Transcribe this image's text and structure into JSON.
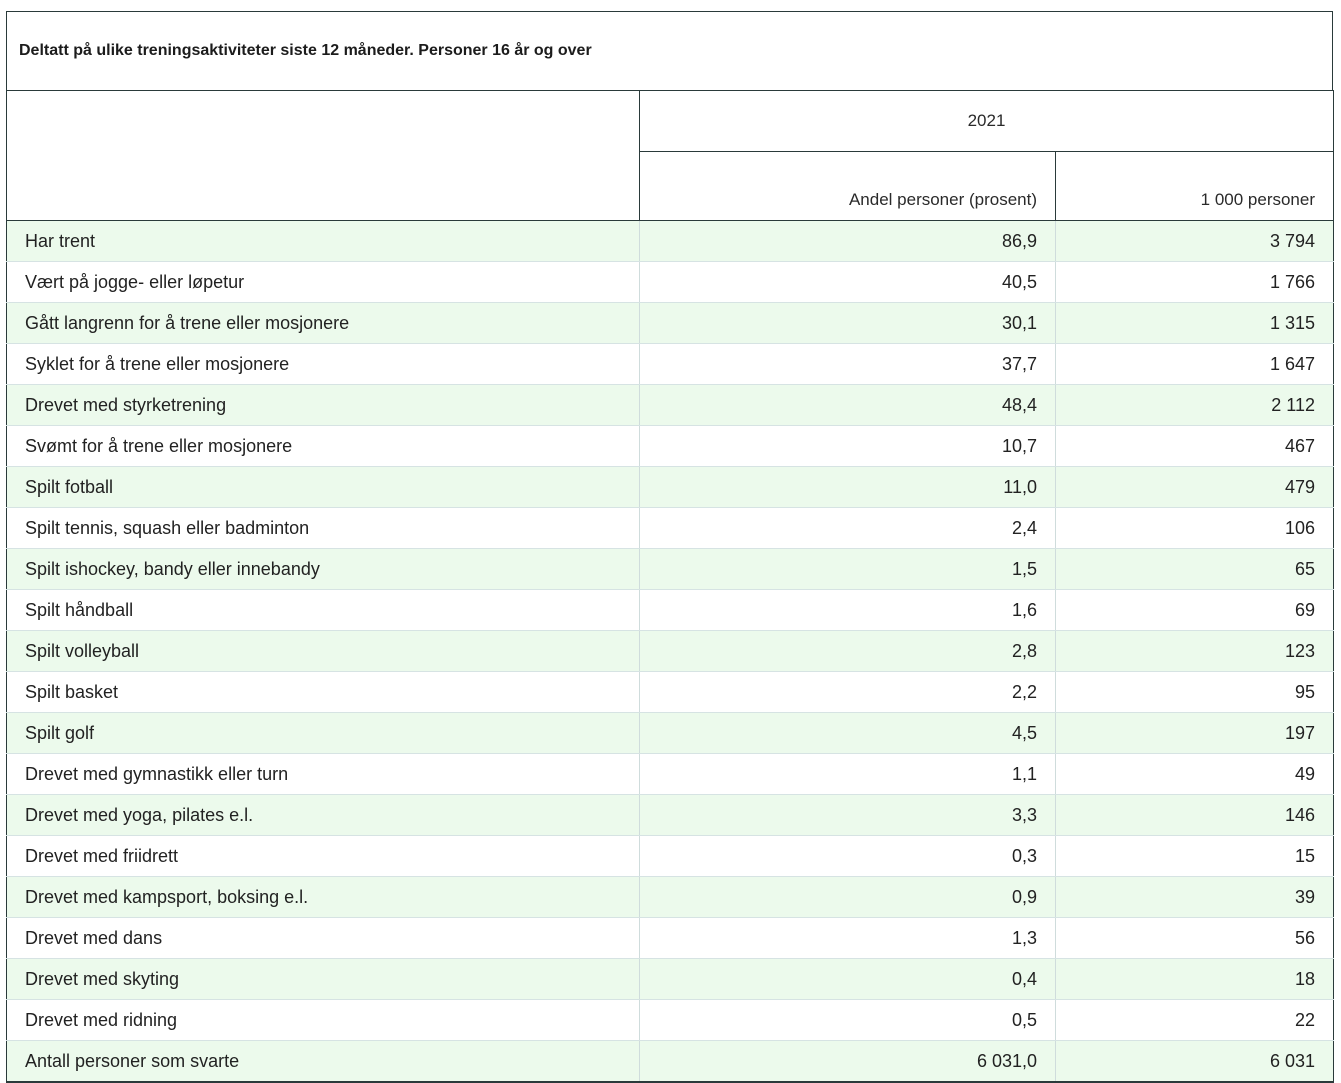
{
  "caption": "Deltatt på ulike treningsaktiviteter siste 12 måneder. Personer 16 år og over",
  "header": {
    "stub": "",
    "year": "2021",
    "columns": [
      "Andel personer (prosent)",
      "1 000 personer"
    ]
  },
  "rows": [
    {
      "label": "Har trent",
      "share": "86,9",
      "persons": "3 794"
    },
    {
      "label": "Vært på jogge- eller løpetur",
      "share": "40,5",
      "persons": "1 766"
    },
    {
      "label": "Gått langrenn for å trene eller mosjonere",
      "share": "30,1",
      "persons": "1 315"
    },
    {
      "label": "Syklet for å trene eller mosjonere",
      "share": "37,7",
      "persons": "1 647"
    },
    {
      "label": "Drevet med styrketrening",
      "share": "48,4",
      "persons": "2 112"
    },
    {
      "label": "Svømt for å trene eller mosjonere",
      "share": "10,7",
      "persons": "467"
    },
    {
      "label": "Spilt fotball",
      "share": "11,0",
      "persons": "479"
    },
    {
      "label": "Spilt tennis, squash eller badminton",
      "share": "2,4",
      "persons": "106"
    },
    {
      "label": "Spilt ishockey, bandy eller innebandy",
      "share": "1,5",
      "persons": "65"
    },
    {
      "label": "Spilt håndball",
      "share": "1,6",
      "persons": "69"
    },
    {
      "label": "Spilt volleyball",
      "share": "2,8",
      "persons": "123"
    },
    {
      "label": "Spilt basket",
      "share": "2,2",
      "persons": "95"
    },
    {
      "label": "Spilt golf",
      "share": "4,5",
      "persons": "197"
    },
    {
      "label": "Drevet med gymnastikk eller turn",
      "share": "1,1",
      "persons": "49"
    },
    {
      "label": "Drevet med yoga, pilates e.l.",
      "share": "3,3",
      "persons": "146"
    },
    {
      "label": "Drevet med friidrett",
      "share": "0,3",
      "persons": "15"
    },
    {
      "label": "Drevet med kampsport, boksing e.l.",
      "share": "0,9",
      "persons": "39"
    },
    {
      "label": "Drevet med dans",
      "share": "1,3",
      "persons": "56"
    },
    {
      "label": "Drevet med skyting",
      "share": "0,4",
      "persons": "18"
    },
    {
      "label": "Drevet med ridning",
      "share": "0,5",
      "persons": "22"
    },
    {
      "label": "Antall personer som svarte",
      "share": "6 031,0",
      "persons": "6 031"
    }
  ],
  "colors": {
    "alt_row": "#ecfaec",
    "border_dark": "#2a3a3a",
    "border_light": "#d6e3e3"
  }
}
